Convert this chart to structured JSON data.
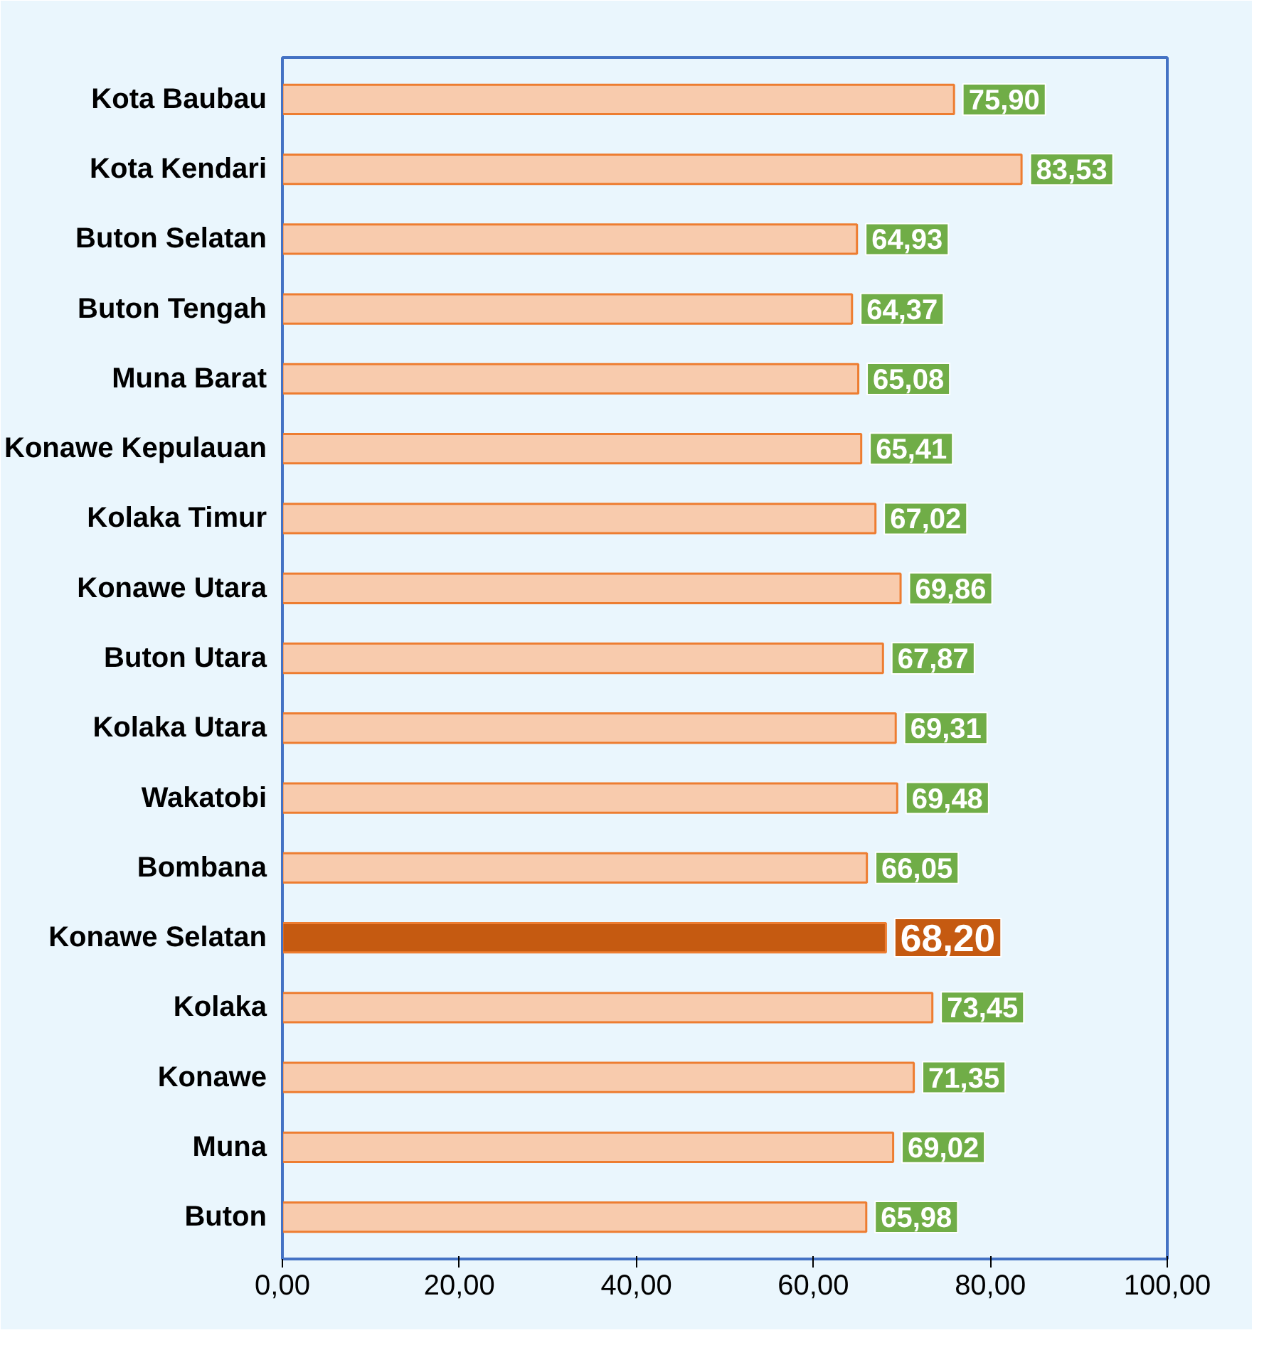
{
  "chart_data": {
    "type": "bar",
    "orientation": "horizontal",
    "categories": [
      "Kota Baubau",
      "Kota Kendari",
      "Buton Selatan",
      "Buton Tengah",
      "Muna Barat",
      "Konawe Kepulauan",
      "Kolaka Timur",
      "Konawe Utara",
      "Buton Utara",
      "Kolaka Utara",
      "Wakatobi",
      "Bombana",
      "Konawe Selatan",
      "Kolaka",
      "Konawe",
      "Muna",
      "Buton"
    ],
    "values": [
      75.9,
      83.53,
      64.93,
      64.37,
      65.08,
      65.41,
      67.02,
      69.86,
      67.87,
      69.31,
      69.48,
      66.05,
      68.2,
      73.45,
      71.35,
      69.02,
      65.98
    ],
    "value_labels": [
      "75,90",
      "83,53",
      "64,93",
      "64,37",
      "65,08",
      "65,41",
      "67,02",
      "69,86",
      "67,87",
      "69,31",
      "69,48",
      "66,05",
      "68,20",
      "73,45",
      "71,35",
      "69,02",
      "65,98"
    ],
    "colors": [
      "#f8cbad",
      "#f8cbad",
      "#f8cbad",
      "#f8cbad",
      "#f8cbad",
      "#f8cbad",
      "#f8cbad",
      "#f8cbad",
      "#f8cbad",
      "#f8cbad",
      "#f8cbad",
      "#f8cbad",
      "#c55a11",
      "#f8cbad",
      "#f8cbad",
      "#f8cbad",
      "#f8cbad"
    ],
    "xlim": [
      0,
      100
    ],
    "xticks": [
      {
        "value": 0,
        "label": "0,00"
      },
      {
        "value": 20,
        "label": "20,00"
      },
      {
        "value": 40,
        "label": "40,00"
      },
      {
        "value": 60,
        "label": "60,00"
      },
      {
        "value": 80,
        "label": "80,00"
      },
      {
        "value": 100,
        "label": "100,00"
      }
    ],
    "grid": false
  }
}
